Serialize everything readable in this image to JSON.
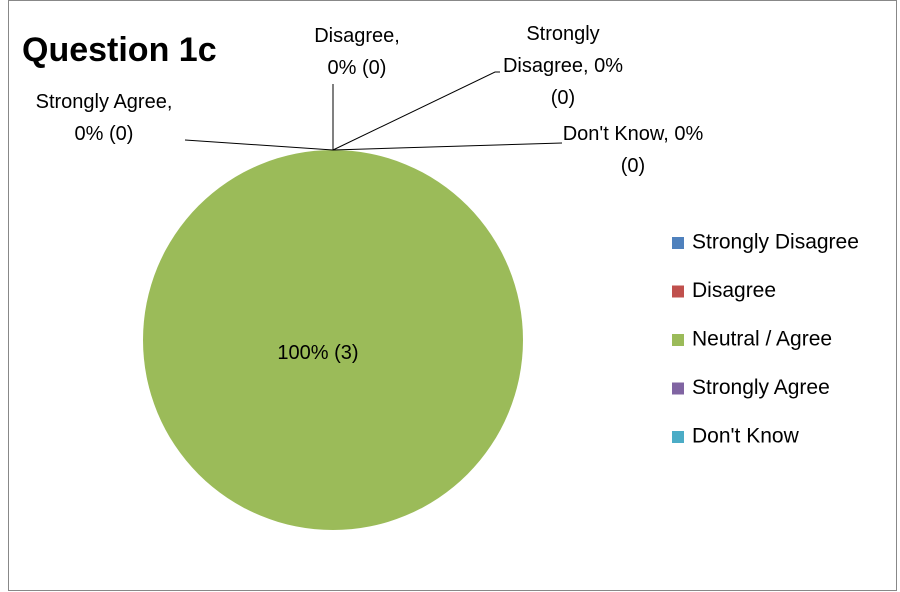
{
  "chart_data": {
    "type": "pie",
    "title": "Question 1c",
    "categories": [
      "Strongly Disagree",
      "Disagree",
      "Neutral / Agree",
      "Strongly Agree",
      "Don't Know"
    ],
    "values": [
      0,
      0,
      100,
      0,
      0
    ],
    "value_labels": [
      "Strongly Disagree, 0% (0)",
      "Disagree, 0% (0)",
      "100% (3)",
      "Strongly Agree, 0% (0)",
      "Don't Know, 0% (0)"
    ],
    "colors": [
      "#4f81bd",
      "#c0504d",
      "#9bbb59",
      "#8064a2",
      "#4bacc6"
    ],
    "legend": "right"
  }
}
